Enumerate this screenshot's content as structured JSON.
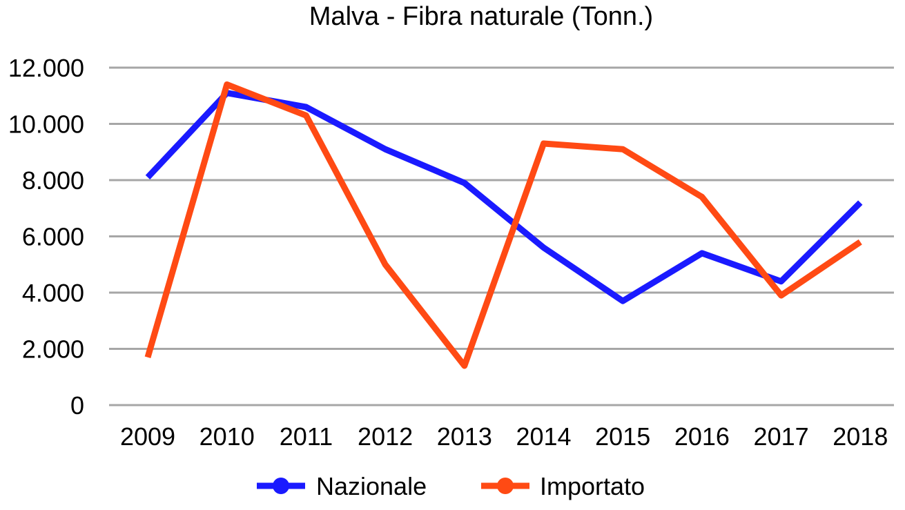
{
  "chart_data": {
    "type": "line",
    "title": "Malva - Fibra naturale (Tonn.)",
    "xlabel": "",
    "ylabel": "",
    "categories": [
      "2009",
      "2010",
      "2011",
      "2012",
      "2013",
      "2014",
      "2015",
      "2016",
      "2017",
      "2018"
    ],
    "ylim": [
      0,
      12000
    ],
    "yticks": [
      0,
      2000,
      4000,
      6000,
      8000,
      10000,
      12000
    ],
    "ytick_labels": [
      "0",
      "2.000",
      "4.000",
      "6.000",
      "8.000",
      "10.000",
      "12.000"
    ],
    "grid": true,
    "legend_position": "bottom",
    "series": [
      {
        "name": "Nazionale",
        "color": "#1a1aff",
        "values": [
          8100,
          11100,
          10600,
          9100,
          7900,
          5600,
          3700,
          5400,
          4400,
          7200
        ]
      },
      {
        "name": "Importato",
        "color": "#ff4a14",
        "values": [
          1700,
          11400,
          10300,
          5000,
          1400,
          9300,
          9100,
          7400,
          3900,
          5800
        ]
      }
    ]
  }
}
